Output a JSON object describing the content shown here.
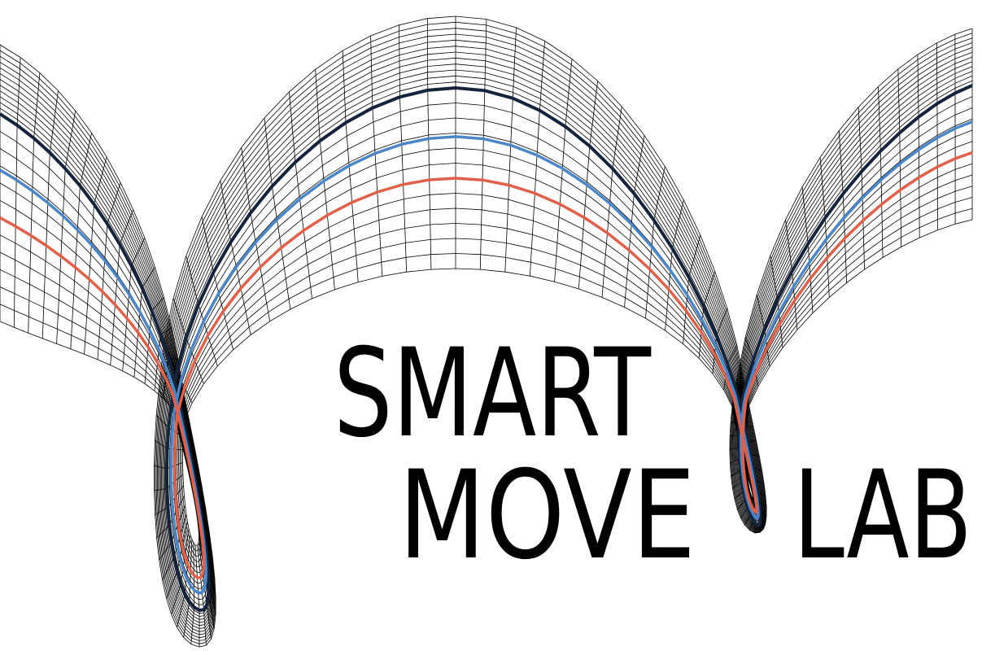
{
  "logo": {
    "line1": "SMART",
    "line2": "MOVE",
    "line3": "LAB"
  }
}
